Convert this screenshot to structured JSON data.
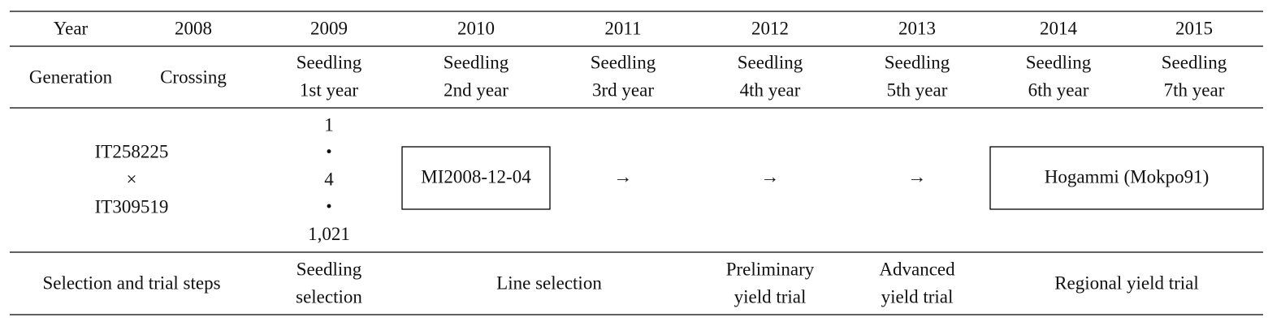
{
  "table": {
    "header": [
      "Year",
      "2008",
      "2009",
      "2010",
      "2011",
      "2012",
      "2013",
      "2014",
      "2015"
    ],
    "generation": {
      "label": "Generation",
      "cells": [
        [
          "Crossing"
        ],
        [
          "Seedling",
          "1st year"
        ],
        [
          "Seedling",
          "2nd year"
        ],
        [
          "Seedling",
          "3rd year"
        ],
        [
          "Seedling",
          "4th year"
        ],
        [
          "Seedling",
          "5th year"
        ],
        [
          "Seedling",
          "6th year"
        ],
        [
          "Seedling",
          "7th year"
        ]
      ]
    },
    "cross": {
      "parents": [
        "IT258225",
        "×",
        "IT309519"
      ],
      "counts": [
        "1",
        "・",
        "4",
        "・",
        "1,021"
      ],
      "line_name": "MI2008-12-04",
      "arrows": [
        "→",
        "→",
        "→"
      ],
      "variety": "Hogammi (Mokpo91)"
    },
    "steps": {
      "label": "Selection and trial steps",
      "cells": [
        [
          "Seedling",
          "selection"
        ],
        [
          "Line selection"
        ],
        [
          "Preliminary",
          "yield trial"
        ],
        [
          "Advanced",
          "yield trial"
        ],
        [
          "Regional yield trial"
        ]
      ]
    }
  }
}
